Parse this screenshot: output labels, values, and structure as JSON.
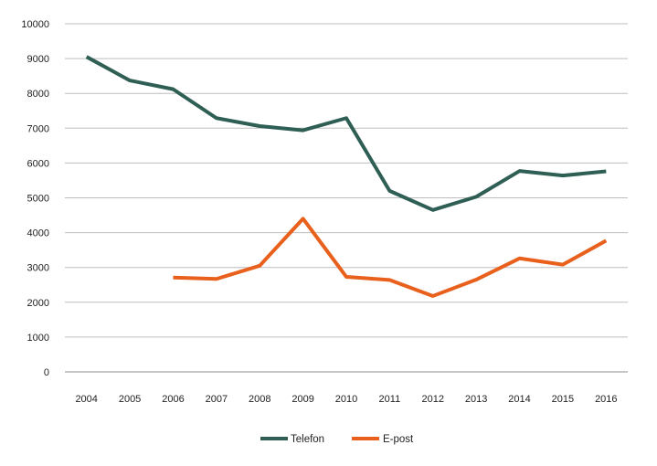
{
  "chart_data": {
    "type": "line",
    "title": "",
    "xlabel": "",
    "ylabel": "",
    "categories": [
      "2004",
      "2005",
      "2006",
      "2007",
      "2008",
      "2009",
      "2010",
      "2011",
      "2012",
      "2013",
      "2014",
      "2015",
      "2016"
    ],
    "ylim": [
      0,
      10000
    ],
    "yticks": [
      "0",
      "1000",
      "2000",
      "3000",
      "4000",
      "5000",
      "6000",
      "7000",
      "8000",
      "9000",
      "10000"
    ],
    "grid": true,
    "legend_position": "bottom-center",
    "series": [
      {
        "name": "Telefon",
        "color": "#2e5e54",
        "values": [
          9050,
          8370,
          8120,
          7290,
          7060,
          6940,
          7290,
          5200,
          4650,
          5030,
          5770,
          5640,
          5760
        ]
      },
      {
        "name": "E-post",
        "color": "#e8601c",
        "values": [
          null,
          null,
          2710,
          2670,
          3050,
          4400,
          2730,
          2640,
          2180,
          2650,
          3260,
          3080,
          3770
        ]
      }
    ]
  }
}
